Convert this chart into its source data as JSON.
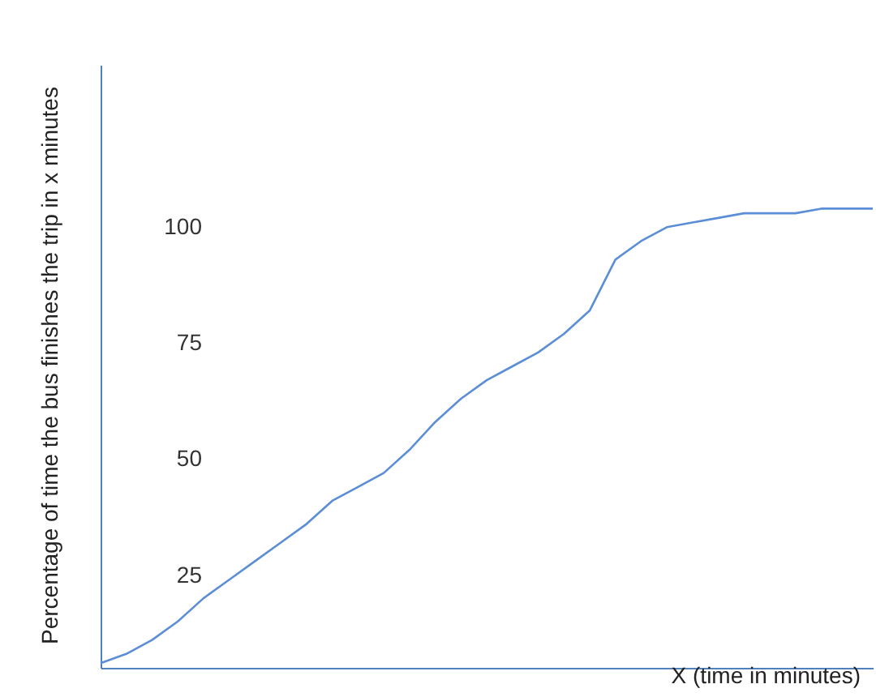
{
  "chart_data": {
    "type": "line",
    "xlabel": "X (time in minutes)",
    "ylabel": "Percentage of time the bus finishes the trip in x minutes",
    "categories": [
      null,
      null,
      null,
      null,
      null,
      null,
      null,
      null,
      null,
      null,
      null,
      null,
      null,
      null,
      null,
      null,
      null,
      null,
      null,
      null,
      null,
      null,
      null,
      null,
      null,
      null,
      null,
      null,
      null,
      null,
      null
    ],
    "series": [
      {
        "color": "#5b8ed6",
        "values": [
          6,
          8,
          11,
          15,
          20,
          24,
          28,
          32,
          36,
          41,
          44,
          47,
          52,
          58,
          63,
          67,
          70,
          73,
          77,
          82,
          93,
          97,
          100,
          101,
          102,
          103,
          103,
          103,
          104,
          104,
          104
        ]
      }
    ],
    "ylim": [
      5,
      135
    ],
    "yticks": [
      25,
      50,
      75,
      100
    ],
    "grid": false,
    "legend": false,
    "tick_labels": "y"
  }
}
